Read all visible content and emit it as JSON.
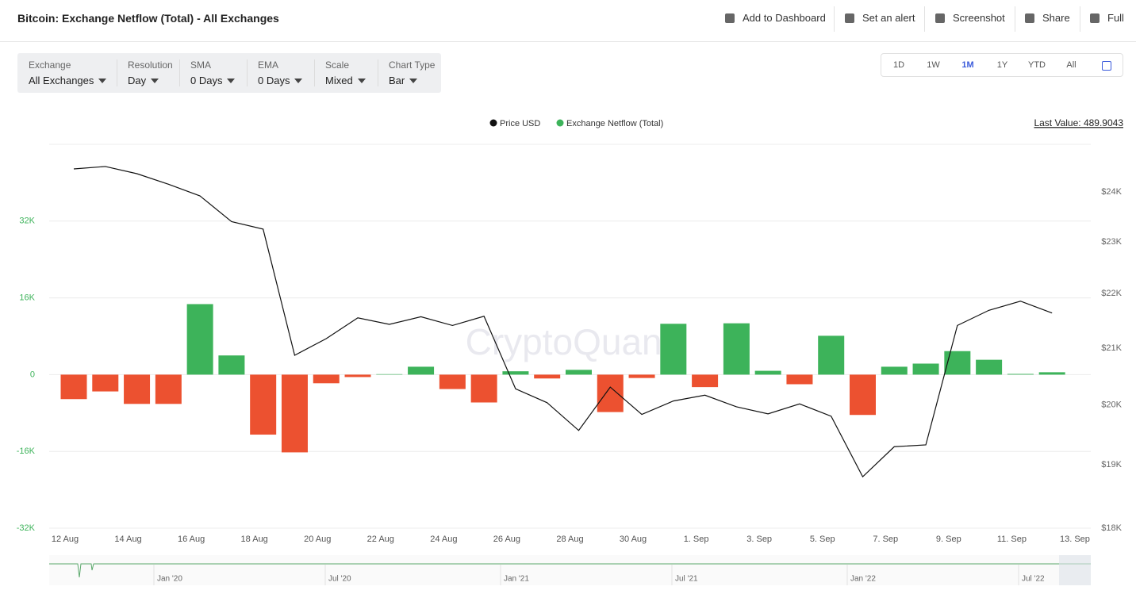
{
  "header": {
    "title": "Bitcoin: Exchange Netflow (Total) - All Exchanges",
    "actions": [
      "Add to Dashboard",
      "Set an alert",
      "Screenshot",
      "Share",
      "Full"
    ]
  },
  "filters": [
    {
      "label": "Exchange",
      "value": "All Exchanges"
    },
    {
      "label": "Resolution",
      "value": "Day"
    },
    {
      "label": "SMA",
      "value": "0 Days"
    },
    {
      "label": "EMA",
      "value": "0 Days"
    },
    {
      "label": "Scale",
      "value": "Mixed"
    },
    {
      "label": "Chart Type",
      "value": "Bar"
    }
  ],
  "ranges": [
    "1D",
    "1W",
    "1M",
    "1Y",
    "YTD",
    "All"
  ],
  "active_range": 2,
  "last_value": "Last Value: 489.9043",
  "watermark": "CryptoQuant",
  "navigator": {
    "labels": [
      "Jan '20",
      "Jul '20",
      "Jan '21",
      "Jul '21",
      "Jan '22",
      "Jul '22"
    ]
  },
  "chart_data": {
    "type": "bar",
    "categories": [
      "12 Aug",
      null,
      "14 Aug",
      null,
      "16 Aug",
      null,
      "18 Aug",
      null,
      "20 Aug",
      null,
      "22 Aug",
      null,
      "24 Aug",
      null,
      "26 Aug",
      null,
      "28 Aug",
      null,
      "30 Aug",
      null,
      "1. Sep",
      null,
      "3. Sep",
      null,
      "5. Sep",
      null,
      "7. Sep",
      null,
      "9. Sep",
      null,
      "11. Sep",
      null,
      "13. Sep"
    ],
    "series": [
      {
        "name": "Price USD",
        "type": "line",
        "axis": "y2",
        "color": "#111111",
        "values": [
          24480,
          24530,
          24380,
          24160,
          23920,
          23400,
          23250,
          20870,
          21170,
          21550,
          21430,
          21570,
          21410,
          21580,
          20280,
          20040,
          19570,
          20310,
          19840,
          20070,
          20170,
          19970,
          19850,
          20020,
          19810,
          18810,
          19300,
          19330,
          21410,
          21690,
          21860,
          21640,
          null
        ]
      },
      {
        "name": "Exchange Netflow (Total)",
        "type": "bar",
        "color": "#3db35a",
        "negative_color": "#ec5130",
        "values": [
          -5100,
          -3500,
          -6100,
          -6100,
          14700,
          4000,
          -12500,
          -16200,
          -1800,
          -500,
          100,
          1650,
          -3000,
          -5800,
          700,
          -800,
          1000,
          -7800,
          -700,
          10600,
          -2600,
          10700,
          800,
          -2000,
          8100,
          -8400,
          1650,
          2300,
          4900,
          3100,
          150,
          500,
          null
        ]
      }
    ],
    "ylim": [
      -32000,
      48000
    ],
    "yticks": [
      {
        "value": -32000,
        "label": "-32K"
      },
      {
        "value": -16000,
        "label": "-16K"
      },
      0,
      {
        "value": 16000,
        "label": "16K"
      },
      {
        "value": 32000,
        "label": "32K"
      }
    ],
    "y2lim": [
      18000,
      25000
    ],
    "y2scale": "log",
    "y2ticks": [
      {
        "value": 18000,
        "label": "$18K"
      },
      {
        "value": 19000,
        "label": "$19K"
      },
      {
        "value": 20000,
        "label": "$20K"
      },
      {
        "value": 21000,
        "label": "$21K"
      },
      {
        "value": 22000,
        "label": "$22K"
      },
      {
        "value": 23000,
        "label": "$23K"
      },
      {
        "value": 24000,
        "label": "$24K"
      }
    ],
    "grid": true
  }
}
